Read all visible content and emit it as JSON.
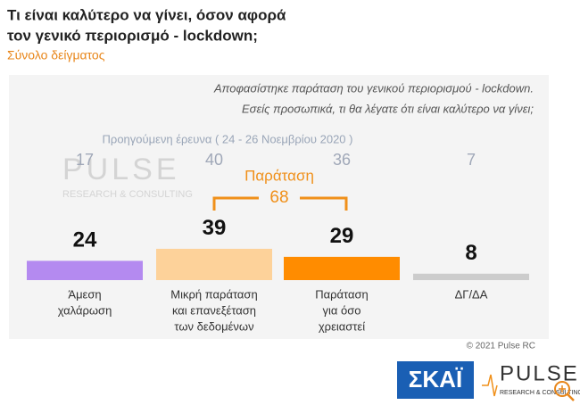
{
  "chart_data": {
    "type": "bar",
    "title": [
      "Τι είναι καλύτερο να γίνει, όσον αφορά",
      "τον γενικό περιορισμό - lockdown;"
    ],
    "subtitle": "Σύνολο δείγματος",
    "question": [
      "Αποφασίστηκε παράταση του γενικού περιορισμού - lockdown.",
      "Εσείς προσωπικά, τι θα λέγατε ότι είναι καλύτερο να γίνει;"
    ],
    "previous_label": "Προηγούμενη έρευνα  ( 24 - 26 Νοεμβρίου  2020 )",
    "previous_values": [
      17,
      40,
      36,
      7
    ],
    "categories": [
      [
        "Άμεση",
        "χαλάρωση"
      ],
      [
        "Μικρή παράταση",
        "και επανεξέταση",
        "των δεδομένων"
      ],
      [
        "Παράταση",
        "για όσο",
        "χρειαστεί"
      ],
      [
        "ΔΓ/ΔΑ"
      ]
    ],
    "values": [
      24,
      39,
      29,
      8
    ],
    "colors": [
      "#b48af0",
      "#fdd29a",
      "#ff8c00",
      "#cccccc"
    ],
    "bracket": {
      "label": "Παράταση",
      "value": 68
    },
    "copyright": "© 2021 Pulse RC",
    "logos": {
      "skai": "ΣΚΑΪ",
      "pulse": "PULSE",
      "pulse_sub": "RESEARCH & CONSULTING"
    }
  }
}
